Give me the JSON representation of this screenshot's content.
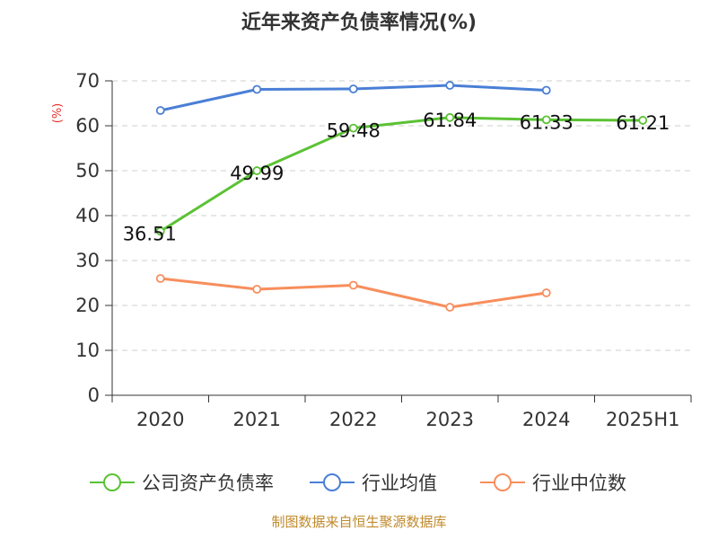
{
  "chart_data": {
    "type": "line",
    "title": "近年来资产负债率情况(%)",
    "xlabel": "",
    "ylabel": "(%)",
    "ylim": [
      0,
      70
    ],
    "yticks": [
      0,
      10,
      20,
      30,
      40,
      50,
      60,
      70
    ],
    "grid": true,
    "categories": [
      "2020",
      "2021",
      "2022",
      "2023",
      "2024",
      "2025H1"
    ],
    "series": [
      {
        "name": "公司资产负债率",
        "color": "#5bc234",
        "values": [
          36.51,
          49.99,
          59.48,
          61.84,
          61.33,
          61.21
        ],
        "labels": [
          "36.51",
          "49.99",
          "59.48",
          "61.84",
          "61.33",
          "61.21"
        ]
      },
      {
        "name": "行业均值",
        "color": "#4a7fd6",
        "values": [
          63.4,
          68.1,
          68.2,
          69.0,
          67.9,
          null
        ]
      },
      {
        "name": "行业中位数",
        "color": "#f78e5c",
        "values": [
          26.0,
          23.6,
          24.5,
          19.6,
          22.8,
          null
        ]
      }
    ],
    "legend_position": "bottom",
    "source": "制图数据来自恒生聚源数据库"
  }
}
